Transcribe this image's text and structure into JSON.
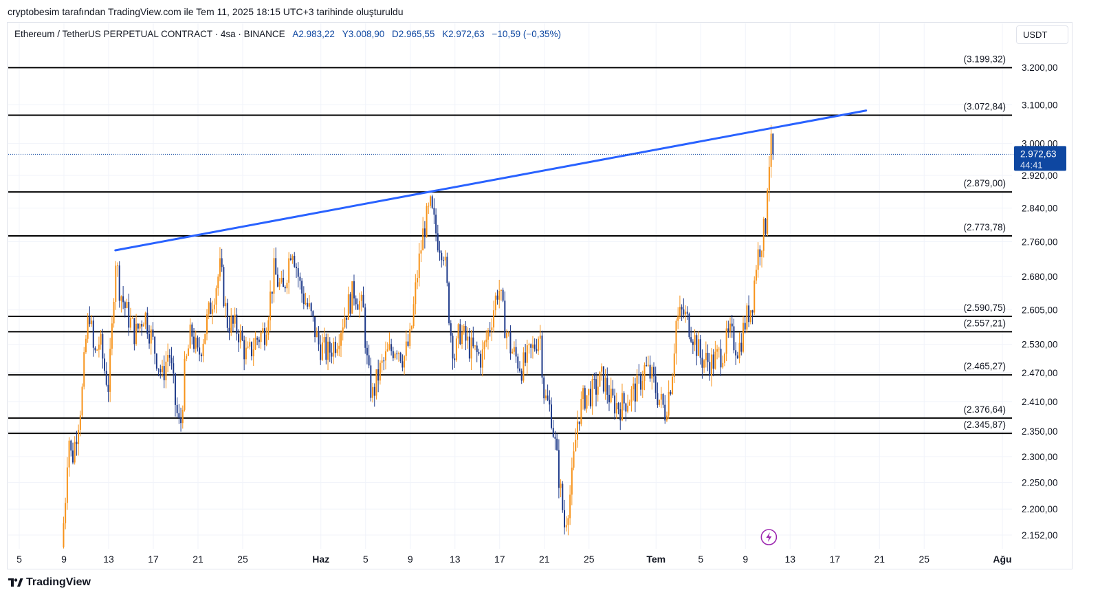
{
  "header": {
    "note": "cryptobesim tarafından TradingView.com ile Tem 11, 2025 18:15 UTC+3 tarihinde oluşturuldu"
  },
  "symbol": {
    "title": "Ethereum / TetherUS PERPETUAL CONTRACT · 4sa · BINANCE",
    "open": "A2.983,22",
    "high": "Y3.008,90",
    "low": "D2.965,55",
    "close": "K2.972,63",
    "change": "−10,59 (−0,35%)"
  },
  "currency_button": "USDT",
  "footer": {
    "brand": "TradingView",
    "logo_icon": "tradingview-logo-icon"
  },
  "colors": {
    "up": "#f7931a",
    "down": "#1e3a8a",
    "trendline": "#2962ff",
    "level_line": "#000000",
    "price_badge": "#0e47a1",
    "flash_icon": "#9c27b0"
  },
  "chart_data": {
    "type": "candlestick",
    "y_scale": "log",
    "ylim": [
      2115,
      3280
    ],
    "current_price": {
      "value": 2972.63,
      "label": "2.972,63",
      "countdown": "44:41"
    },
    "y_ticks": [
      {
        "value": 3200,
        "label": "3.200,00"
      },
      {
        "value": 3100,
        "label": "3.100,00"
      },
      {
        "value": 3000,
        "label": "3.000,00"
      },
      {
        "value": 2920,
        "label": "2.920,00"
      },
      {
        "value": 2840,
        "label": "2.840,00"
      },
      {
        "value": 2760,
        "label": "2.760,00"
      },
      {
        "value": 2680,
        "label": "2.680,00"
      },
      {
        "value": 2605,
        "label": "2.605,00"
      },
      {
        "value": 2530,
        "label": "2.530,00"
      },
      {
        "value": 2470,
        "label": "2.470,00"
      },
      {
        "value": 2410,
        "label": "2.410,00"
      },
      {
        "value": 2350,
        "label": "2.350,00"
      },
      {
        "value": 2300,
        "label": "2.300,00"
      },
      {
        "value": 2250,
        "label": "2.250,00"
      },
      {
        "value": 2200,
        "label": "2.200,00"
      },
      {
        "value": 2152,
        "label": "2.152,00"
      }
    ],
    "x_ticks": [
      {
        "day": 0,
        "label": "5",
        "bold": false
      },
      {
        "day": 4,
        "label": "9",
        "bold": false
      },
      {
        "day": 8,
        "label": "13",
        "bold": false
      },
      {
        "day": 12,
        "label": "17",
        "bold": false
      },
      {
        "day": 16,
        "label": "21",
        "bold": false
      },
      {
        "day": 20,
        "label": "25",
        "bold": false
      },
      {
        "day": 27,
        "label": "Haz",
        "bold": true
      },
      {
        "day": 31,
        "label": "5",
        "bold": false
      },
      {
        "day": 35,
        "label": "9",
        "bold": false
      },
      {
        "day": 39,
        "label": "13",
        "bold": false
      },
      {
        "day": 43,
        "label": "17",
        "bold": false
      },
      {
        "day": 47,
        "label": "21",
        "bold": false
      },
      {
        "day": 51,
        "label": "25",
        "bold": false
      },
      {
        "day": 57,
        "label": "Tem",
        "bold": true
      },
      {
        "day": 61,
        "label": "5",
        "bold": false
      },
      {
        "day": 65,
        "label": "9",
        "bold": false
      },
      {
        "day": 69,
        "label": "13",
        "bold": false
      },
      {
        "day": 73,
        "label": "17",
        "bold": false
      },
      {
        "day": 77,
        "label": "21",
        "bold": false
      },
      {
        "day": 81,
        "label": "25",
        "bold": false
      },
      {
        "day": 88,
        "label": "Ağu",
        "bold": true
      }
    ],
    "levels": [
      {
        "value": 3199.32,
        "label": "(3.199,32)"
      },
      {
        "value": 3072.84,
        "label": "(3.072,84)"
      },
      {
        "value": 2879.0,
        "label": "(2.879,00)"
      },
      {
        "value": 2773.78,
        "label": "(2.773,78)"
      },
      {
        "value": 2590.75,
        "label": "(2.590,75)"
      },
      {
        "value": 2557.21,
        "label": "(2.557,21)"
      },
      {
        "value": 2465.27,
        "label": "(2.465,27)"
      },
      {
        "value": 2376.64,
        "label": "(2.376,64)"
      },
      {
        "value": 2345.87,
        "label": "(2.345,87)"
      }
    ],
    "trendline": {
      "from": {
        "day": 8.6,
        "value": 2740
      },
      "to": {
        "day": 75.8,
        "value": 3085
      }
    },
    "event_marker": {
      "day": 67.1,
      "icon": "flash-icon"
    },
    "path": [
      {
        "day": 3.8,
        "value": 2130
      },
      {
        "day": 4.1,
        "value": 2210
      },
      {
        "day": 4.4,
        "value": 2350
      },
      {
        "day": 4.7,
        "value": 2290
      },
      {
        "day": 5.0,
        "value": 2330
      },
      {
        "day": 5.6,
        "value": 2420
      },
      {
        "day": 6.0,
        "value": 2550
      },
      {
        "day": 6.3,
        "value": 2600
      },
      {
        "day": 6.7,
        "value": 2500
      },
      {
        "day": 7.2,
        "value": 2540
      },
      {
        "day": 7.6,
        "value": 2480
      },
      {
        "day": 8.0,
        "value": 2440
      },
      {
        "day": 8.3,
        "value": 2560
      },
      {
        "day": 8.6,
        "value": 2730
      },
      {
        "day": 9.0,
        "value": 2650
      },
      {
        "day": 9.6,
        "value": 2600
      },
      {
        "day": 10.4,
        "value": 2550
      },
      {
        "day": 11.2,
        "value": 2600
      },
      {
        "day": 12.0,
        "value": 2530
      },
      {
        "day": 12.8,
        "value": 2460
      },
      {
        "day": 13.4,
        "value": 2520
      },
      {
        "day": 14.0,
        "value": 2400
      },
      {
        "day": 14.4,
        "value": 2350
      },
      {
        "day": 14.8,
        "value": 2470
      },
      {
        "day": 15.4,
        "value": 2560
      },
      {
        "day": 16.0,
        "value": 2500
      },
      {
        "day": 16.8,
        "value": 2580
      },
      {
        "day": 17.4,
        "value": 2640
      },
      {
        "day": 18.0,
        "value": 2700
      },
      {
        "day": 18.6,
        "value": 2580
      },
      {
        "day": 19.6,
        "value": 2560
      },
      {
        "day": 20.4,
        "value": 2500
      },
      {
        "day": 21.2,
        "value": 2540
      },
      {
        "day": 22.0,
        "value": 2560
      },
      {
        "day": 22.8,
        "value": 2690
      },
      {
        "day": 23.6,
        "value": 2640
      },
      {
        "day": 24.4,
        "value": 2760
      },
      {
        "day": 25.2,
        "value": 2650
      },
      {
        "day": 26.0,
        "value": 2600
      },
      {
        "day": 26.8,
        "value": 2530
      },
      {
        "day": 27.6,
        "value": 2510
      },
      {
        "day": 28.4,
        "value": 2540
      },
      {
        "day": 29.2,
        "value": 2600
      },
      {
        "day": 30.0,
        "value": 2650
      },
      {
        "day": 30.8,
        "value": 2600
      },
      {
        "day": 31.2,
        "value": 2470
      },
      {
        "day": 31.6,
        "value": 2420
      },
      {
        "day": 32.2,
        "value": 2470
      },
      {
        "day": 33.0,
        "value": 2510
      },
      {
        "day": 33.8,
        "value": 2530
      },
      {
        "day": 34.4,
        "value": 2500
      },
      {
        "day": 35.0,
        "value": 2540
      },
      {
        "day": 35.6,
        "value": 2680
      },
      {
        "day": 36.2,
        "value": 2790
      },
      {
        "day": 36.8,
        "value": 2840
      },
      {
        "day": 37.4,
        "value": 2770
      },
      {
        "day": 38.0,
        "value": 2740
      },
      {
        "day": 38.6,
        "value": 2560
      },
      {
        "day": 39.0,
        "value": 2500
      },
      {
        "day": 39.4,
        "value": 2560
      },
      {
        "day": 40.4,
        "value": 2520
      },
      {
        "day": 41.4,
        "value": 2500
      },
      {
        "day": 42.2,
        "value": 2580
      },
      {
        "day": 42.9,
        "value": 2660
      },
      {
        "day": 43.4,
        "value": 2580
      },
      {
        "day": 44.0,
        "value": 2520
      },
      {
        "day": 45.0,
        "value": 2480
      },
      {
        "day": 46.0,
        "value": 2520
      },
      {
        "day": 46.6,
        "value": 2560
      },
      {
        "day": 47.0,
        "value": 2420
      },
      {
        "day": 47.6,
        "value": 2390
      },
      {
        "day": 48.2,
        "value": 2280
      },
      {
        "day": 48.8,
        "value": 2170
      },
      {
        "day": 49.4,
        "value": 2240
      },
      {
        "day": 50.0,
        "value": 2380
      },
      {
        "day": 50.6,
        "value": 2420
      },
      {
        "day": 51.4,
        "value": 2430
      },
      {
        "day": 52.2,
        "value": 2460
      },
      {
        "day": 53.0,
        "value": 2410
      },
      {
        "day": 53.8,
        "value": 2400
      },
      {
        "day": 54.6,
        "value": 2420
      },
      {
        "day": 55.4,
        "value": 2440
      },
      {
        "day": 56.0,
        "value": 2480
      },
      {
        "day": 56.6,
        "value": 2460
      },
      {
        "day": 57.2,
        "value": 2420
      },
      {
        "day": 57.8,
        "value": 2390
      },
      {
        "day": 58.4,
        "value": 2460
      },
      {
        "day": 58.8,
        "value": 2580
      },
      {
        "day": 59.4,
        "value": 2600
      },
      {
        "day": 60.2,
        "value": 2560
      },
      {
        "day": 61.0,
        "value": 2500
      },
      {
        "day": 62.0,
        "value": 2490
      },
      {
        "day": 62.8,
        "value": 2510
      },
      {
        "day": 63.6,
        "value": 2550
      },
      {
        "day": 64.4,
        "value": 2520
      },
      {
        "day": 65.0,
        "value": 2580
      },
      {
        "day": 65.6,
        "value": 2620
      },
      {
        "day": 66.0,
        "value": 2720
      },
      {
        "day": 66.4,
        "value": 2760
      },
      {
        "day": 66.8,
        "value": 2800
      },
      {
        "day": 67.0,
        "value": 2930
      },
      {
        "day": 67.3,
        "value": 2990
      },
      {
        "day": 67.6,
        "value": 2972.63
      }
    ]
  }
}
